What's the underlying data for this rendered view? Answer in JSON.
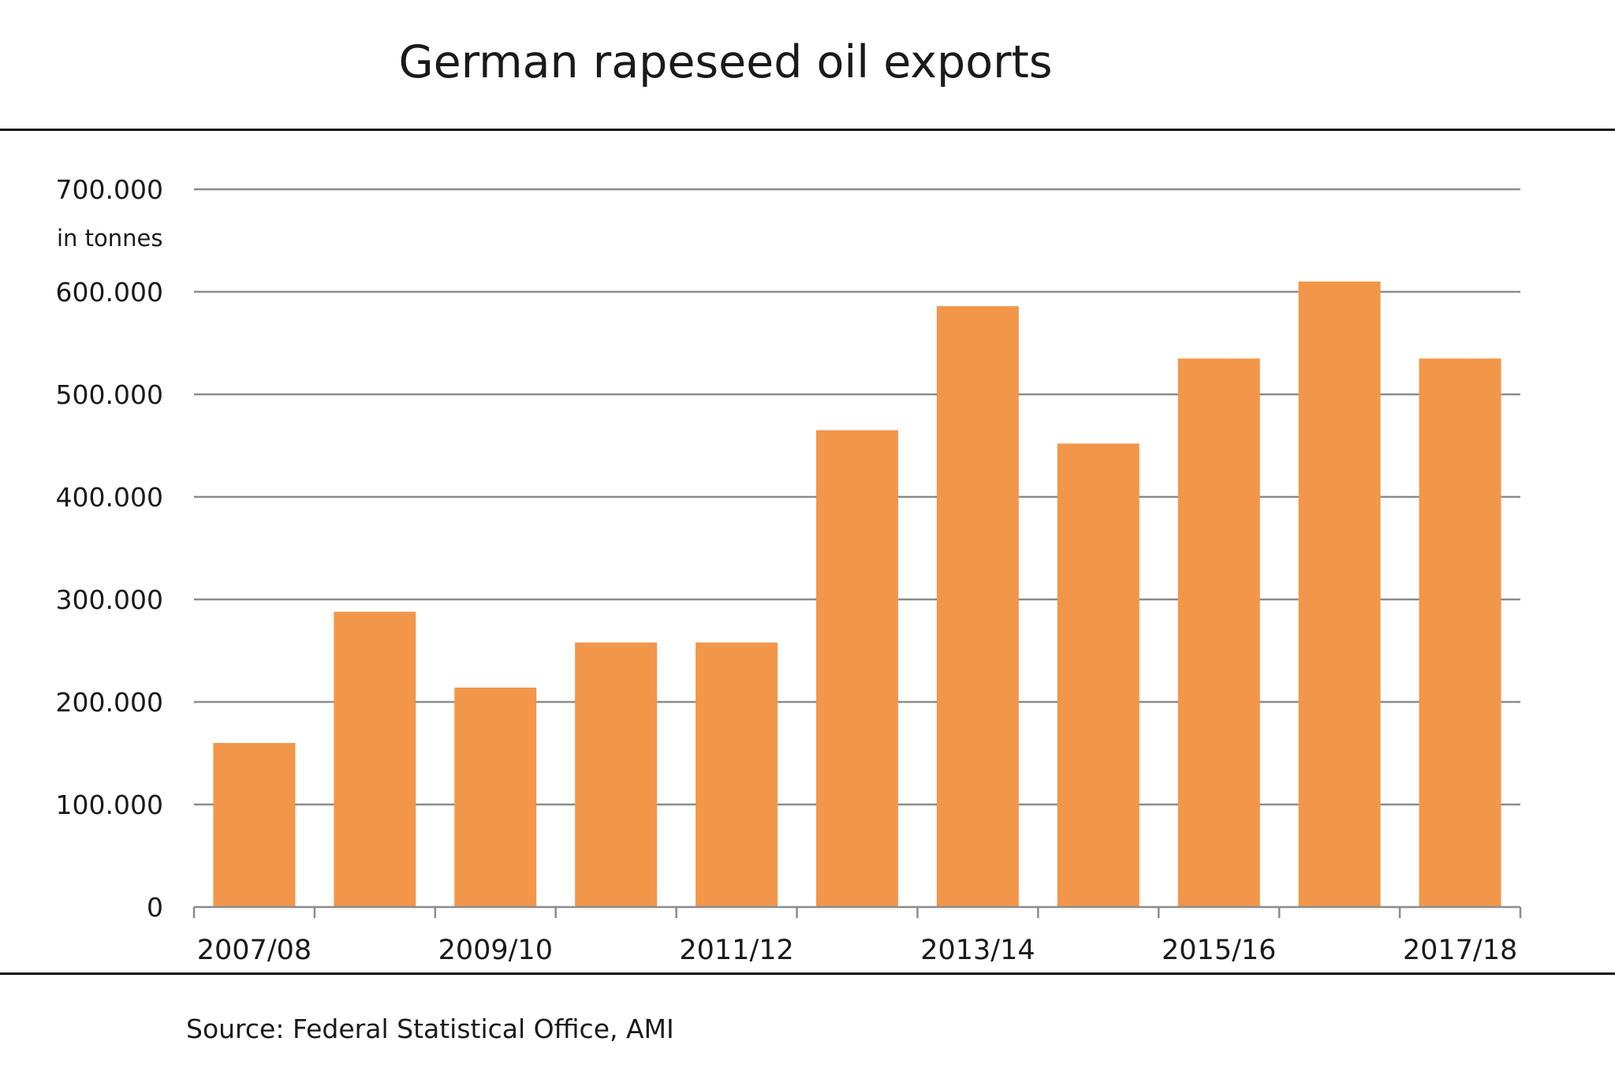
{
  "chart_data": {
    "type": "bar",
    "title": "German rapeseed oil exports",
    "ylabel": "in tonnes",
    "xlabel": "",
    "ylim": [
      0,
      700000
    ],
    "yticks": [
      0,
      100000,
      200000,
      300000,
      400000,
      500000,
      600000,
      700000
    ],
    "ytick_labels": [
      "0",
      "100.000",
      "200.000",
      "300.000",
      "400.000",
      "500.000",
      "600.000",
      "700.000"
    ],
    "categories": [
      "2007/08",
      "2008/09",
      "2009/10",
      "2010/11",
      "2011/12",
      "2012/13",
      "2013/14",
      "2014/15",
      "2015/16",
      "2016/17",
      "2017/18"
    ],
    "xtick_labels": [
      "2007/08",
      "",
      "2009/10",
      "",
      "2011/12",
      "",
      "2013/14",
      "",
      "2015/16",
      "",
      "2017/18"
    ],
    "values": [
      160000,
      288000,
      214000,
      258000,
      258000,
      465000,
      586000,
      452000,
      535000,
      610000,
      535000
    ],
    "grid": true,
    "bar_color": "#F2964A",
    "gridline_color": "#8c8c8c"
  },
  "source": "Source: Federal Statistical Office, AMI"
}
